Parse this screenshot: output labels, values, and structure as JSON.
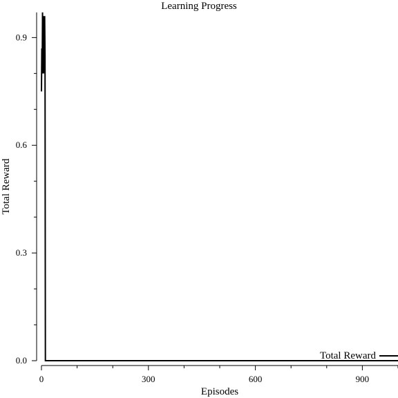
{
  "chart_data": {
    "type": "line",
    "title": "Learning Progress",
    "xlabel": "Episodes",
    "ylabel": "Total Reward",
    "xlim": [
      0,
      1000
    ],
    "ylim": [
      0,
      0.97
    ],
    "x_ticks_major": [
      0,
      300,
      600,
      900
    ],
    "x_ticks_minor": [
      100,
      200,
      400,
      500,
      700,
      800,
      1000
    ],
    "y_ticks_major": [
      0.0,
      0.3,
      0.6,
      0.9
    ],
    "y_ticks_major_labels": [
      "0.0",
      "0.3",
      "0.6",
      "0.9"
    ],
    "y_ticks_minor": [
      0.1,
      0.2,
      0.4,
      0.5,
      0.7,
      0.8
    ],
    "grid": false,
    "legend_position": "bottom-right",
    "series": [
      {
        "name": "Total Reward",
        "color": "#000000",
        "x": [
          0,
          1,
          2,
          3,
          4,
          5,
          6,
          7,
          8,
          9,
          10,
          11,
          12,
          1000
        ],
        "y": [
          0.75,
          0.87,
          0.8,
          0.97,
          0.82,
          0.94,
          0.8,
          0.96,
          0.82,
          0.96,
          0.85,
          0.0,
          0.0,
          0.0
        ]
      }
    ]
  }
}
